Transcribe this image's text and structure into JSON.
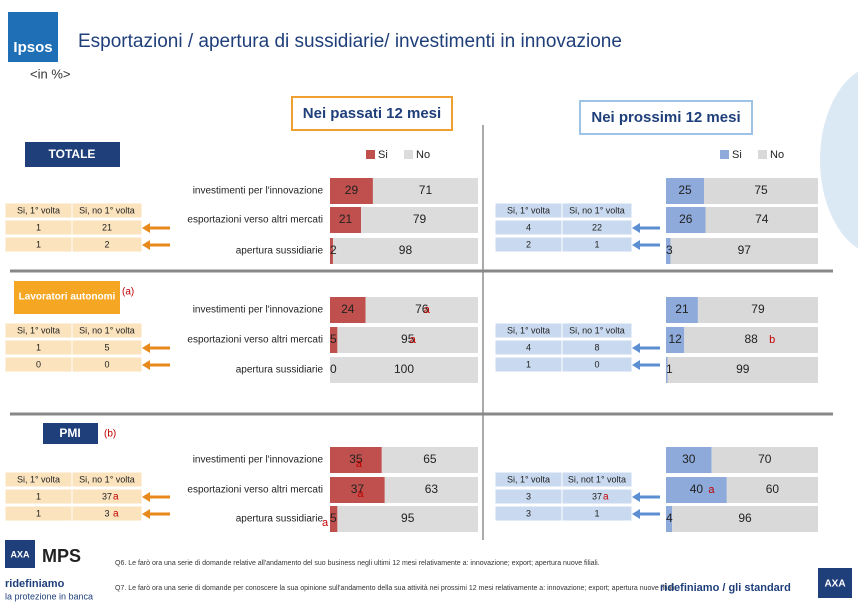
{
  "header": {
    "logo": "Ipsos",
    "title": "Esportazioni / apertura di sussidiarie/ investimenti in innovazione",
    "unit": "<in %>"
  },
  "groups": [
    {
      "label": "TOTALE"
    },
    {
      "label": "Lavoratori autonomi",
      "note": "(a)"
    },
    {
      "label": "PMI",
      "note": "(b)"
    }
  ],
  "chart_data": {
    "type": "bar",
    "xlim": [
      0,
      100
    ],
    "categories": [
      "investimenti per l'innovazione",
      "esportazioni verso altri mercati",
      "apertura sussidiarie"
    ],
    "panels": [
      {
        "title": "Nei passati 12 mesi",
        "legend": [
          {
            "name": "Si",
            "color": "#c0504d"
          },
          {
            "name": "No",
            "color": "#dcdcdc"
          }
        ],
        "groups": [
          {
            "rows": [
              {
                "si": 29,
                "no": 71
              },
              {
                "si": 21,
                "no": 79
              },
              {
                "si": 2,
                "no": 98
              }
            ],
            "table": {
              "header": [
                "Si, 1° volta",
                "Si, no 1° volta"
              ],
              "rows": [
                [
                  1,
                  21
                ],
                [
                  1,
                  2
                ]
              ]
            }
          },
          {
            "rows": [
              {
                "si": 24,
                "no": 76,
                "no_note": "a"
              },
              {
                "si": 5,
                "no": 95,
                "no_note": "a"
              },
              {
                "si": 0,
                "no": 100
              }
            ],
            "table": {
              "header": [
                "Si, 1° volta",
                "Si, no 1° volta"
              ],
              "rows": [
                [
                  1,
                  5
                ],
                [
                  0,
                  0
                ]
              ]
            }
          },
          {
            "rows": [
              {
                "si": 35,
                "no": 65,
                "si_note": "a"
              },
              {
                "si": 37,
                "no": 63,
                "si_note": "a"
              },
              {
                "si": 5,
                "no": 95,
                "si_note": "a"
              }
            ],
            "table": {
              "header": [
                "Si, 1° volta",
                "Si, no 1° volta"
              ],
              "rows": [
                [
                  1,
                  {
                    "value": 37,
                    "note": "a"
                  }
                ],
                [
                  1,
                  {
                    "value": 3,
                    "note": "a"
                  }
                ]
              ]
            }
          }
        ]
      },
      {
        "title": "Nei prossimi 12 mesi",
        "legend": [
          {
            "name": "Si",
            "color": "#8eaadb"
          },
          {
            "name": "No",
            "color": "#d9d9d9"
          }
        ],
        "groups": [
          {
            "rows": [
              {
                "si": 25,
                "no": 75
              },
              {
                "si": 26,
                "no": 74
              },
              {
                "si": 3,
                "no": 97
              }
            ],
            "table": {
              "header": [
                "Si, 1° volta",
                "Si, no 1° volta"
              ],
              "rows": [
                [
                  4,
                  22
                ],
                [
                  2,
                  1
                ]
              ]
            }
          },
          {
            "rows": [
              {
                "si": 21,
                "no": 79
              },
              {
                "si": 12,
                "no": 88,
                "no_note": "b"
              },
              {
                "si": 1,
                "no": 99
              }
            ],
            "table": {
              "header": [
                "Si, 1° volta",
                "Si, no 1° volta"
              ],
              "rows": [
                [
                  4,
                  8
                ],
                [
                  1,
                  0
                ]
              ]
            }
          },
          {
            "rows": [
              {
                "si": 30,
                "no": 70
              },
              {
                "si": 40,
                "no": 60,
                "si_note": "a"
              },
              {
                "si": 4,
                "no": 96
              }
            ],
            "table": {
              "header": [
                "Si, 1° volta",
                "Si, not 1° volta"
              ],
              "rows": [
                [
                  3,
                  {
                    "value": 37,
                    "note": "a"
                  }
                ],
                [
                  3,
                  1
                ]
              ]
            }
          }
        ]
      }
    ]
  },
  "footer": {
    "q6": "Q6. Le farò ora una serie di domande relative all'andamento del suo business negli ultimi 12 mesi relativamente a: innovazione; export; apertura nuove filiali.",
    "q7": "Q7. Le farò ora una serie di domande per conoscere la sua opinione sull'andamento della sua attività nei prossimi 12 mesi relativamente a: innovazione; export; apertura nuove filiali.",
    "brand_left": "MPS",
    "axa": "AXA",
    "slogan": "ridefiniamo",
    "slogan_sub": "la protezione in banca",
    "slogan_right": "ridefiniamo / gli standard"
  }
}
